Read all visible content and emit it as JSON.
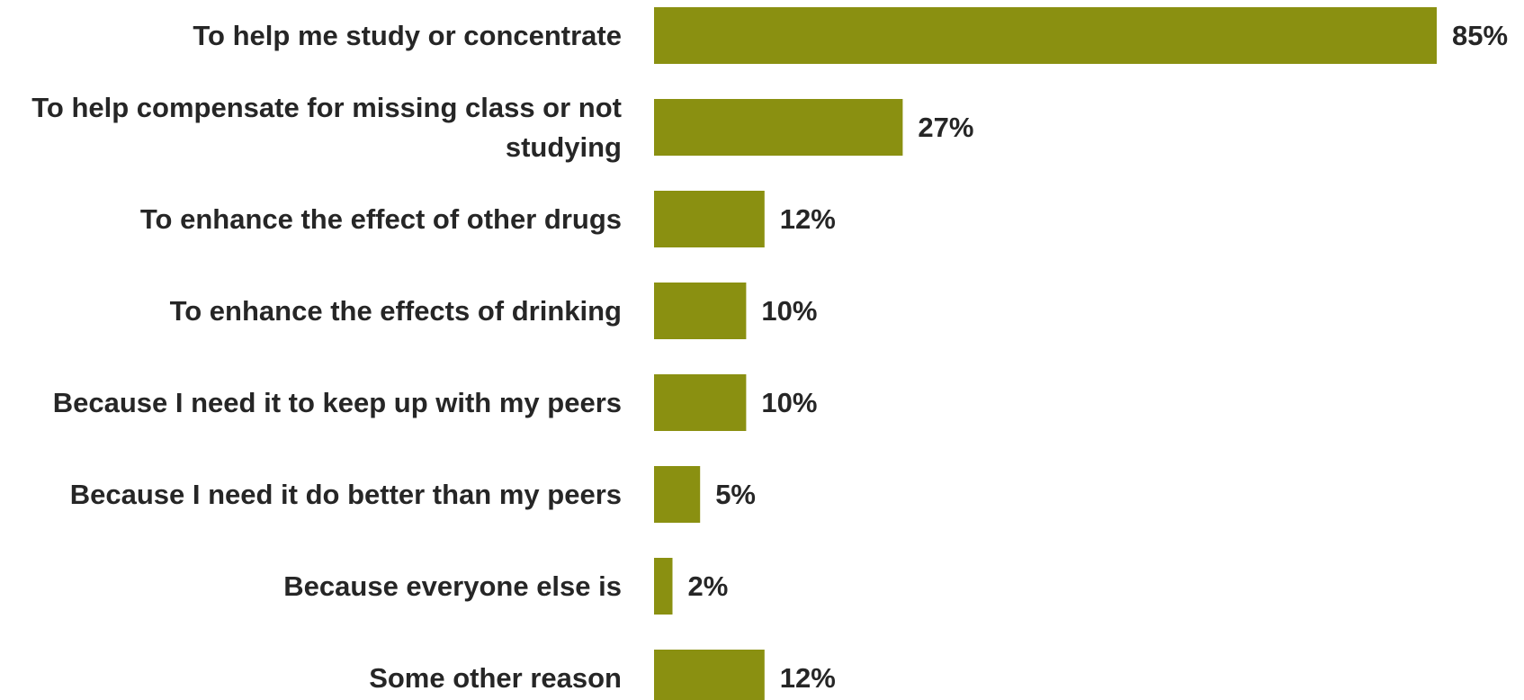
{
  "chart_data": {
    "type": "bar",
    "orientation": "horizontal",
    "categories": [
      "To help me study or concentrate",
      "To help compensate for missing class or not studying",
      "To enhance the effect of other drugs",
      "To enhance the effects of drinking",
      "Because I need it to keep up with my peers",
      "Because I need it do better than my peers",
      "Because everyone else is",
      "Some other reason"
    ],
    "values": [
      85,
      27,
      12,
      10,
      10,
      5,
      2,
      12
    ],
    "value_labels": [
      "85%",
      "27%",
      "12%",
      "10%",
      "10%",
      "5%",
      "2%",
      "12%"
    ],
    "unit": "%",
    "xlim": [
      0,
      85
    ],
    "grid": false,
    "legend": "none",
    "bar_color": "#8a9011",
    "text_color": "#262626"
  }
}
